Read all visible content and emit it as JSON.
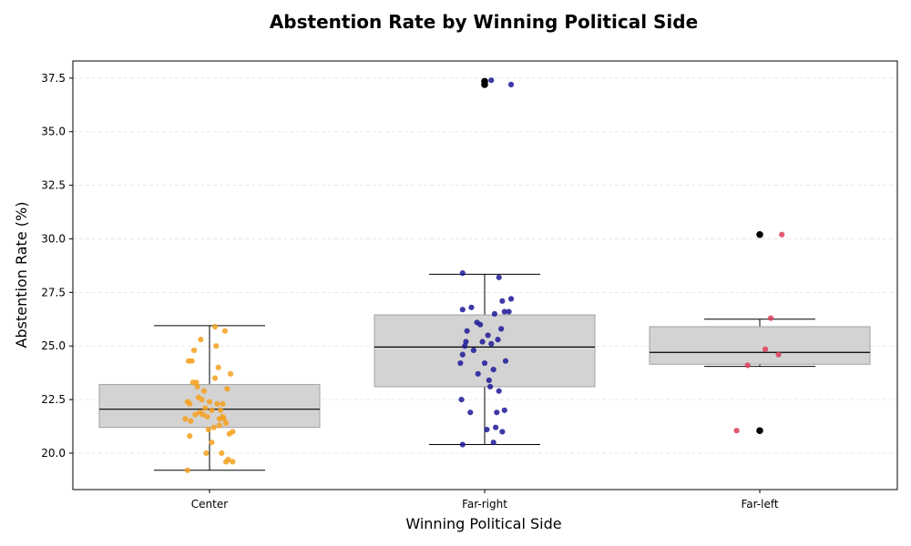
{
  "chart_data": {
    "type": "box",
    "title": "Abstention Rate by Winning Political Side",
    "xlabel": "Winning Political Side",
    "ylabel": "Abstention Rate (%)",
    "ylim": [
      18.3,
      38.3
    ],
    "yticks": [
      "20.0",
      "22.5",
      "25.0",
      "27.5",
      "30.0",
      "32.5",
      "35.0",
      "37.5"
    ],
    "grid": "y-dashed",
    "categories": [
      "Center",
      "Far-right",
      "Far-left"
    ],
    "colors": {
      "Center": "#f5a01e",
      "Far-right": "#1c1896",
      "Far-left": "#dc3c5a",
      "box_fill": "#d3d3d3",
      "box_edge": "#a0a0a0",
      "outlier": "#000000"
    },
    "boxes": [
      {
        "category": "Center",
        "whisker_low": 19.2,
        "q1": 21.2,
        "median": 22.05,
        "q3": 23.2,
        "whisker_high": 25.95,
        "outliers": []
      },
      {
        "category": "Far-right",
        "whisker_low": 20.4,
        "q1": 23.1,
        "median": 24.95,
        "q3": 26.45,
        "whisker_high": 28.35,
        "outliers": [
          37.35,
          37.2
        ]
      },
      {
        "category": "Far-left",
        "whisker_low": 24.05,
        "q1": 24.15,
        "median": 24.7,
        "q3": 25.9,
        "whisker_high": 26.25,
        "outliers": [
          30.2,
          21.05
        ]
      }
    ],
    "points": {
      "Center": [
        [
          -0.17,
          21.5
        ],
        [
          -0.09,
          21.9
        ],
        [
          -0.02,
          21.7
        ],
        [
          0.07,
          22.3
        ],
        [
          0.15,
          21.4
        ],
        [
          -0.2,
          22.4
        ],
        [
          -0.04,
          22.1
        ],
        [
          0.05,
          23.5
        ],
        [
          0.12,
          22.3
        ],
        [
          -0.13,
          21.8
        ],
        [
          0.02,
          22.0
        ],
        [
          -0.07,
          22.5
        ],
        [
          0.18,
          20.9
        ],
        [
          -0.15,
          23.3
        ],
        [
          0.09,
          21.6
        ],
        [
          -0.22,
          21.6
        ],
        [
          0.0,
          22.4
        ],
        [
          0.13,
          21.6
        ],
        [
          -0.1,
          22.6
        ],
        [
          0.04,
          21.2
        ],
        [
          -0.18,
          20.8
        ],
        [
          0.21,
          21.0
        ],
        [
          -0.06,
          21.8
        ],
        [
          0.1,
          22.0
        ],
        [
          -0.12,
          23.3
        ],
        [
          0.16,
          23.0
        ],
        [
          -0.01,
          21.1
        ],
        [
          0.08,
          24.0
        ],
        [
          -0.19,
          24.3
        ],
        [
          0.14,
          25.7
        ],
        [
          -0.14,
          24.8
        ],
        [
          0.05,
          25.9
        ],
        [
          -0.08,
          25.3
        ],
        [
          0.19,
          23.7
        ],
        [
          -0.03,
          20.0
        ],
        [
          0.11,
          20.0
        ],
        [
          -0.16,
          24.3
        ],
        [
          0.17,
          19.7
        ],
        [
          -0.2,
          19.2
        ],
        [
          0.21,
          19.6
        ],
        [
          0.06,
          25.0
        ],
        [
          -0.11,
          23.1
        ],
        [
          0.02,
          20.5
        ],
        [
          0.15,
          19.6
        ],
        [
          -0.05,
          22.9
        ],
        [
          0.12,
          21.7
        ],
        [
          -0.18,
          22.3
        ],
        [
          0.09,
          21.3
        ]
      ],
      "Far-right": [
        [
          -0.2,
          20.4
        ],
        [
          0.08,
          20.5
        ],
        [
          -0.13,
          21.9
        ],
        [
          0.1,
          21.2
        ],
        [
          0.02,
          21.1
        ],
        [
          0.16,
          21.0
        ],
        [
          0.11,
          21.9
        ],
        [
          0.18,
          22.0
        ],
        [
          -0.21,
          22.5
        ],
        [
          0.13,
          22.9
        ],
        [
          0.05,
          23.1
        ],
        [
          -0.06,
          23.7
        ],
        [
          0.08,
          23.9
        ],
        [
          0.04,
          23.4
        ],
        [
          -0.22,
          24.2
        ],
        [
          0.0,
          24.2
        ],
        [
          0.19,
          24.3
        ],
        [
          -0.2,
          24.6
        ],
        [
          -0.1,
          24.8
        ],
        [
          -0.18,
          25.0
        ],
        [
          0.06,
          25.1
        ],
        [
          0.12,
          25.3
        ],
        [
          -0.02,
          25.2
        ],
        [
          0.03,
          25.5
        ],
        [
          -0.16,
          25.7
        ],
        [
          0.15,
          25.8
        ],
        [
          -0.04,
          26.0
        ],
        [
          -0.07,
          26.1
        ],
        [
          0.22,
          26.6
        ],
        [
          0.18,
          26.6
        ],
        [
          0.09,
          26.5
        ],
        [
          -0.2,
          26.7
        ],
        [
          -0.12,
          26.8
        ],
        [
          0.16,
          27.1
        ],
        [
          0.24,
          27.2
        ],
        [
          0.13,
          28.2
        ],
        [
          -0.2,
          28.4
        ],
        [
          0.06,
          37.4
        ],
        [
          0.24,
          37.2
        ],
        [
          -0.17,
          25.2
        ]
      ],
      "Far-left": [
        [
          -0.21,
          21.05
        ],
        [
          -0.11,
          24.1
        ],
        [
          0.05,
          24.85
        ],
        [
          0.17,
          24.6
        ],
        [
          0.1,
          26.3
        ],
        [
          0.2,
          30.2
        ]
      ]
    }
  }
}
